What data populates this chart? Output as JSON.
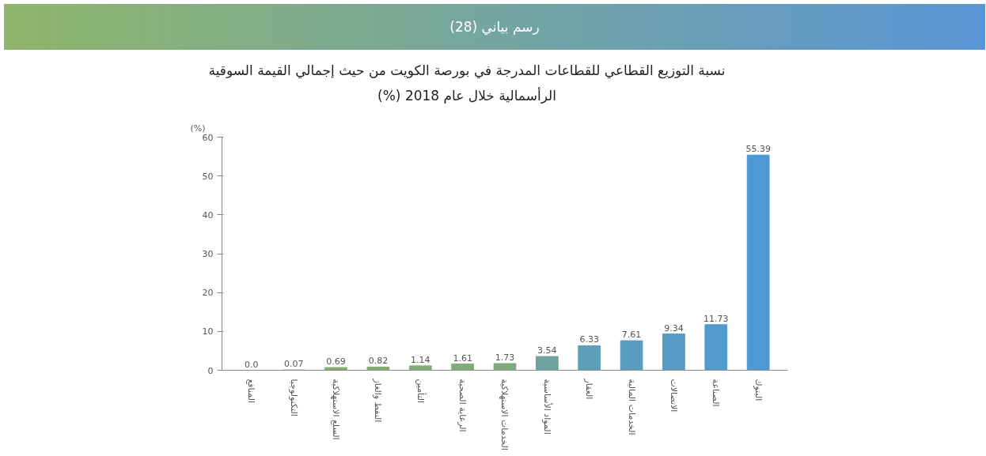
{
  "chart_data": {
    "type": "bar",
    "title": "نسبة التوزيع القطاعي للقطاعات المدرجة في بورصة الكويت من حيث إجمالي القيمة السوقية الرأسمالية خلال عام 2018 (%)",
    "ylabel": "(%)",
    "annotations": [
      "رسم بياني (28)"
    ],
    "categories": [
      "المنافع",
      "التكنولوجيا",
      "السلع الاستهلاكية",
      "النفط والغاز",
      "التأمين",
      "الرعاية الصحية",
      "الخدمات الاستهلاكية",
      "المواد الأساسية",
      "العقار",
      "الخدمات المالية",
      "الاتصالات",
      "الصناعة",
      "البنوك"
    ],
    "values": [
      0.0,
      0.07,
      0.69,
      0.82,
      1.14,
      1.61,
      1.73,
      3.54,
      6.33,
      7.61,
      9.34,
      11.73,
      55.39
    ],
    "value_labels": [
      "0.0",
      "0.07",
      "0.69",
      "0.82",
      "1.14",
      "1.61",
      "1.73",
      "3.54",
      "6.33",
      "7.61",
      "9.34",
      "11.73",
      "55.39"
    ],
    "colors": [
      "#86ae6e",
      "#86ae6e",
      "#86ae6e",
      "#84ad72",
      "#82ac76",
      "#80ab7a",
      "#7eaa7e",
      "#6ea4a0",
      "#5e9fb8",
      "#5a9dbf",
      "#569cc6",
      "#529bcc",
      "#4c99d4"
    ],
    "ylim": [
      0,
      60
    ],
    "yticks": [
      0,
      10,
      20,
      30,
      40,
      50,
      60
    ],
    "grid": false
  }
}
